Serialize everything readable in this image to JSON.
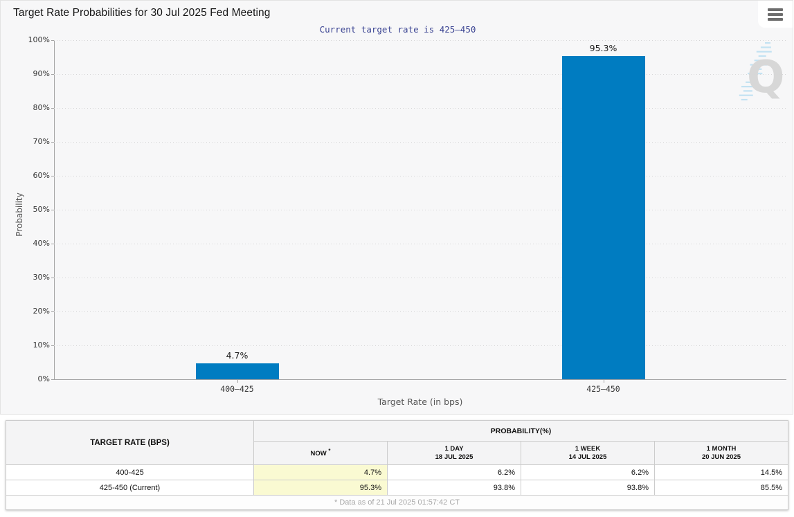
{
  "header": {
    "title": "Target Rate Probabilities for 30 Jul 2025 Fed Meeting",
    "menu_icon": "hamburger-icon"
  },
  "chart_data": {
    "type": "bar",
    "title": "Current target rate is 425–450",
    "categories": [
      "400–425",
      "425–450"
    ],
    "values": [
      4.7,
      95.3
    ],
    "bar_labels": [
      "4.7%",
      "95.3%"
    ],
    "xlabel": "Target Rate (in bps)",
    "ylabel": "Probability",
    "ylim": [
      0,
      100
    ],
    "ytick_step": 10,
    "ytick_suffix": "%",
    "grid": "horizontal-dotted",
    "legend": "none",
    "bar_color": "#007cc1"
  },
  "watermark": {
    "letter": "Q",
    "letter_color": "#d2d2d2",
    "bolt_color": "#badff2"
  },
  "table": {
    "rate_header": "TARGET RATE (BPS)",
    "group_header": "PROBABILITY(%)",
    "columns": [
      {
        "label": "NOW",
        "sup": "*",
        "sub": ""
      },
      {
        "label": "1 DAY",
        "sup": "",
        "sub": "18 JUL 2025"
      },
      {
        "label": "1 WEEK",
        "sup": "",
        "sub": "14 JUL 2025"
      },
      {
        "label": "1 MONTH",
        "sup": "",
        "sub": "20 JUN 2025"
      }
    ],
    "rows": [
      {
        "rate": "400-425",
        "values": [
          "4.7%",
          "6.2%",
          "6.2%",
          "14.5%"
        ]
      },
      {
        "rate": "425-450 (Current)",
        "values": [
          "95.3%",
          "93.8%",
          "93.8%",
          "85.5%"
        ]
      }
    ],
    "footnote": "* Data as of 21 Jul 2025 01:57:42 CT",
    "highlight_color": "#fafad2"
  }
}
